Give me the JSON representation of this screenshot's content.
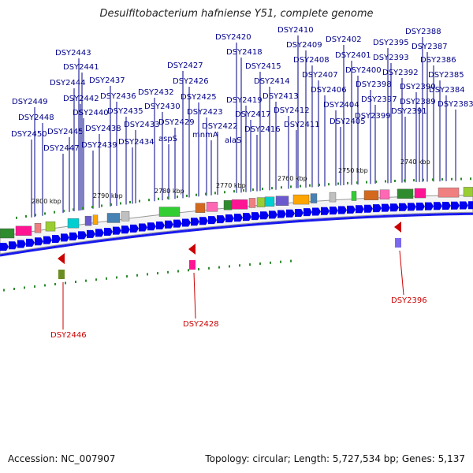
{
  "title": "Desulfitobacterium hafniense Y51, complete genome",
  "footer": {
    "accession": "Accession: NC_007907",
    "topology": "Topology: circular; Length: 5,727,534 bp; Genes: 5,137"
  },
  "colors": {
    "label": "#00008b",
    "highlight": "#cc0000",
    "forward_gene": "#0000ee",
    "backbone": "#1a1aee",
    "tick": "#2e8b2e"
  },
  "scale": [
    {
      "label": "2800 kbp"
    },
    {
      "label": "2790 kbp"
    },
    {
      "label": "2780 kbp"
    },
    {
      "label": "2770 kbp"
    },
    {
      "label": "2760 kbp"
    },
    {
      "label": "2750 kbp"
    },
    {
      "label": "2740 kbp"
    }
  ],
  "gene_labels": [
    {
      "text": "DSY2443"
    },
    {
      "text": "DSY2441"
    },
    {
      "text": "DSY2444"
    },
    {
      "text": "DSY2442"
    },
    {
      "text": "DSY2449"
    },
    {
      "text": "DSY2440"
    },
    {
      "text": "DSY2448"
    },
    {
      "text": "DSY2445"
    },
    {
      "text": "DSY2450"
    },
    {
      "text": "DSY2447"
    },
    {
      "text": "DSY2439"
    },
    {
      "text": "DSY2438"
    },
    {
      "text": "DSY2437"
    },
    {
      "text": "DSY2436"
    },
    {
      "text": "DSY2435"
    },
    {
      "text": "DSY2433"
    },
    {
      "text": "DSY2434"
    },
    {
      "text": "DSY2432"
    },
    {
      "text": "DSY2430"
    },
    {
      "text": "DSY2429"
    },
    {
      "text": "aspS"
    },
    {
      "text": "DSY2427"
    },
    {
      "text": "DSY2426"
    },
    {
      "text": "DSY2425"
    },
    {
      "text": "DSY2423"
    },
    {
      "text": "mnmA"
    },
    {
      "text": "DSY2422"
    },
    {
      "text": "DSY2420"
    },
    {
      "text": "DSY2418"
    },
    {
      "text": "DSY2419"
    },
    {
      "text": "DSY2417"
    },
    {
      "text": "alaS"
    },
    {
      "text": "DSY2416"
    },
    {
      "text": "DSY2415"
    },
    {
      "text": "DSY2414"
    },
    {
      "text": "DSY2413"
    },
    {
      "text": "DSY2412"
    },
    {
      "text": "DSY2411"
    },
    {
      "text": "DSY2410"
    },
    {
      "text": "DSY2409"
    },
    {
      "text": "DSY2408"
    },
    {
      "text": "DSY2407"
    },
    {
      "text": "DSY2406"
    },
    {
      "text": "DSY2404"
    },
    {
      "text": "DSY2405"
    },
    {
      "text": "DSY2402"
    },
    {
      "text": "DSY2401"
    },
    {
      "text": "DSY2400"
    },
    {
      "text": "DSY2399"
    },
    {
      "text": "DSY2398"
    },
    {
      "text": "DSY2397"
    },
    {
      "text": "DSY2395"
    },
    {
      "text": "DSY2393"
    },
    {
      "text": "DSY2392"
    },
    {
      "text": "DSY2391"
    },
    {
      "text": "DSY2390"
    },
    {
      "text": "DSY2389"
    },
    {
      "text": "DSY2388"
    },
    {
      "text": "DSY2387"
    },
    {
      "text": "DSY2386"
    },
    {
      "text": "DSY2385"
    },
    {
      "text": "DSY2384"
    },
    {
      "text": "DSY2383"
    }
  ],
  "highlighted_genes": [
    {
      "text": "DSY2446"
    },
    {
      "text": "DSY2428"
    },
    {
      "text": "DSY2396"
    }
  ]
}
